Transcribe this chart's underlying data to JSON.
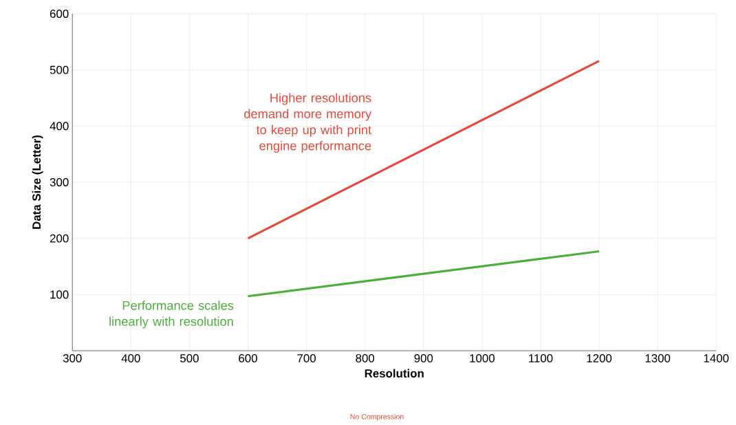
{
  "chart_data": {
    "type": "line",
    "xlabel": "Resolution",
    "ylabel": "Data Size (Letter)",
    "x": [
      600,
      1200
    ],
    "series": [
      {
        "name": "No Compression",
        "color": "#e8483a",
        "values": [
          200,
          516
        ]
      },
      {
        "color": "#4caf3c",
        "values": [
          97,
          177
        ]
      }
    ],
    "xlim": [
      300,
      1400
    ],
    "xticks": [
      300,
      400,
      500,
      600,
      700,
      800,
      900,
      1000,
      1100,
      1200,
      1300,
      1400
    ],
    "ylim": [
      0,
      600
    ],
    "yticks": [
      {
        "value": 0,
        "label": null
      },
      100,
      200,
      300,
      400,
      500,
      600
    ],
    "grid": true,
    "legend": "bottom",
    "marker": "none",
    "line_style": "solid",
    "annotations": [
      "Higher resolutions demand more memory to keep up with print engine performance",
      "Performance scales linearly with resolution"
    ]
  }
}
